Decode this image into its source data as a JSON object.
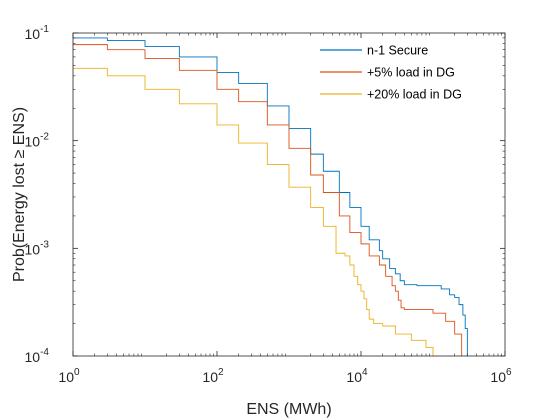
{
  "chart_data": {
    "type": "line",
    "xlabel": "ENS (MWh)",
    "ylabel": "Prob(Energy lost ≥ ENS)",
    "xscale": "log",
    "yscale": "log",
    "xlim": [
      1,
      1000000
    ],
    "ylim": [
      0.0001,
      0.1
    ],
    "x_ticks": [
      {
        "base": "10",
        "exp": "0"
      },
      {
        "base": "10",
        "exp": "2"
      },
      {
        "base": "10",
        "exp": "4"
      },
      {
        "base": "10",
        "exp": "6"
      }
    ],
    "y_ticks": [
      {
        "base": "10",
        "exp": "-1"
      },
      {
        "base": "10",
        "exp": "-2"
      },
      {
        "base": "10",
        "exp": "-3"
      },
      {
        "base": "10",
        "exp": "-4"
      }
    ],
    "legend_position": "top-right",
    "grid": false,
    "series": [
      {
        "name": "n-1 Secure",
        "color": "#0072BD",
        "x": [
          1,
          3,
          10,
          30,
          100,
          200,
          500,
          1000,
          2000,
          3000,
          5000,
          7000,
          10000,
          13000,
          18000,
          20000,
          25000,
          30000,
          35000,
          40000,
          60000,
          90000,
          130000,
          170000,
          200000,
          230000,
          260000,
          280000,
          300000
        ],
        "y": [
          0.09,
          0.085,
          0.075,
          0.06,
          0.043,
          0.034,
          0.021,
          0.013,
          0.0075,
          0.0052,
          0.0033,
          0.0024,
          0.0016,
          0.0012,
          0.00095,
          0.0008,
          0.00065,
          0.00058,
          0.0005,
          0.00046,
          0.00045,
          0.00045,
          0.00042,
          0.00037,
          0.00035,
          0.0003,
          0.00024,
          0.00018,
          0.0001
        ]
      },
      {
        "name": "+5% load in DG",
        "color": "#D95319",
        "x": [
          1,
          3,
          10,
          30,
          100,
          200,
          500,
          1000,
          2000,
          3000,
          5000,
          7000,
          10000,
          13000,
          18000,
          22000,
          27000,
          30000,
          33000,
          36000,
          40000,
          50000,
          70000,
          100000,
          150000,
          200000,
          250000
        ],
        "y": [
          0.078,
          0.07,
          0.058,
          0.045,
          0.03,
          0.023,
          0.014,
          0.0085,
          0.0048,
          0.0033,
          0.002,
          0.0014,
          0.0011,
          0.00085,
          0.0007,
          0.00055,
          0.00045,
          0.0004,
          0.00033,
          0.00028,
          0.00027,
          0.00027,
          0.00027,
          0.00025,
          0.00021,
          0.00016,
          0.0001
        ]
      },
      {
        "name": "+20% load in DG",
        "color": "#EDB120",
        "x": [
          1,
          3,
          10,
          30,
          100,
          200,
          500,
          1000,
          2000,
          3000,
          4500,
          6000,
          7000,
          8000,
          9000,
          10000,
          11000,
          12000,
          13000,
          15000,
          20000,
          30000,
          50000,
          80000,
          100000
        ],
        "y": [
          0.047,
          0.04,
          0.03,
          0.022,
          0.014,
          0.0095,
          0.006,
          0.0037,
          0.0024,
          0.0016,
          0.0009,
          0.00085,
          0.0007,
          0.00055,
          0.00046,
          0.0004,
          0.00034,
          0.00027,
          0.00022,
          0.0002,
          0.00019,
          0.00016,
          0.00014,
          0.00012,
          0.0001
        ]
      }
    ]
  }
}
